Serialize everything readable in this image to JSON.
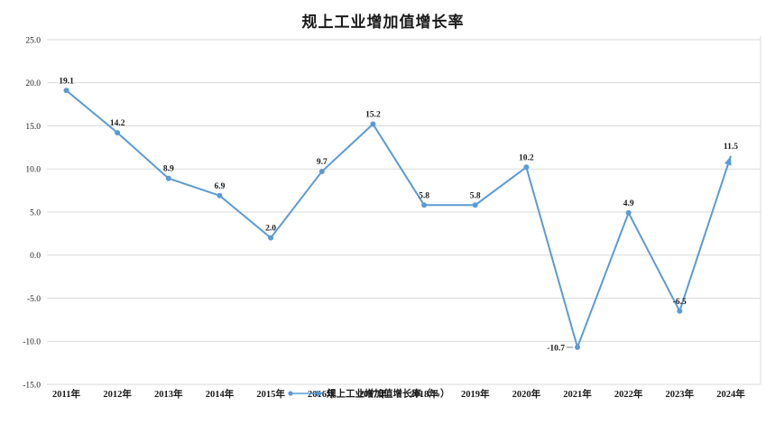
{
  "chart_data": {
    "type": "line",
    "title": "规上工业增加值增长率",
    "legend": {
      "label": "规上工业增加值增长率（%）",
      "position": "bottom-center",
      "marker": "dot-line-arrow"
    },
    "categories": [
      "2011年",
      "2012年",
      "2013年",
      "2014年",
      "2015年",
      "2016年",
      "2017年",
      "2018年",
      "2019年",
      "2020年",
      "2021年",
      "2022年",
      "2023年",
      "2024年"
    ],
    "series": [
      {
        "name": "规上工业增加值增长率（%）",
        "values": [
          19.1,
          14.2,
          8.9,
          6.9,
          2.0,
          9.7,
          15.2,
          5.8,
          5.8,
          10.2,
          -10.7,
          4.9,
          -6.5,
          11.5
        ]
      }
    ],
    "data_labels": [
      "19.1",
      "14.2",
      "8.9",
      "6.9",
      "2.0",
      "9.7",
      "15.2",
      "5.8",
      "5.8",
      "10.2",
      "-10.7",
      "4.9",
      "-6.5",
      "11.5"
    ],
    "label_positions": [
      "above",
      "above",
      "above",
      "above",
      "above",
      "above",
      "above",
      "above",
      "above",
      "above",
      "left-leader",
      "above",
      "above",
      "above"
    ],
    "xlabel": "",
    "ylabel": "",
    "ylim": [
      -15,
      25
    ],
    "y_ticks": [
      "25.0",
      "20.0",
      "15.0",
      "10.0",
      "5.0",
      "0.0",
      "-5.0",
      "-10.0",
      "-15.0"
    ],
    "grid": "horizontal-on",
    "last_point_arrow": true,
    "colors": {
      "line": "#5B9BD5",
      "grid": "#D9D9D9",
      "plot_right_border": "#D9D9D9",
      "text": "#1a1a1a",
      "leader_line": "#7f7f7f"
    }
  }
}
